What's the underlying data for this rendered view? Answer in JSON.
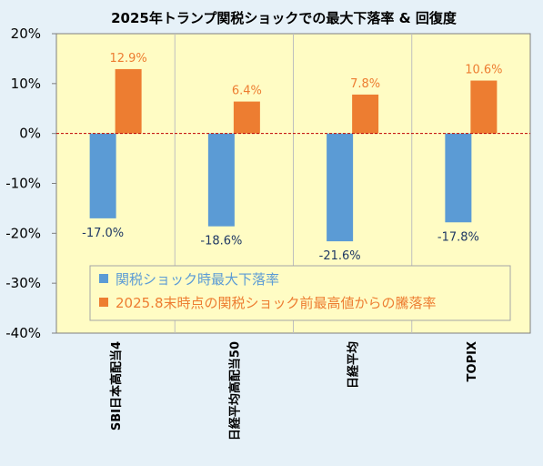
{
  "chart_data": {
    "type": "bar",
    "title": "2025年トランプ関税ショックでの最大下落率 & 回復度",
    "categories": [
      "SBI日本高配当4",
      "日経平均高配当50",
      "日経平均",
      "TOPIX"
    ],
    "series": [
      {
        "name": "関税ショック時最大下落率",
        "values": [
          -17.0,
          -18.6,
          -21.6,
          -17.8
        ],
        "labels": [
          "-17.0%",
          "-18.6%",
          "-21.6%",
          "-17.8%"
        ],
        "color": "#5b9bd5",
        "label_color": "#1f3864"
      },
      {
        "name": "2025.8末時点の関税ショック前最高値からの騰落率",
        "values": [
          12.9,
          6.4,
          7.8,
          10.6
        ],
        "labels": [
          "12.9%",
          "6.4%",
          "7.8%",
          "10.6%"
        ],
        "color": "#ed7d31",
        "label_color": "#ed7d31"
      }
    ],
    "ylim": [
      -40,
      20
    ],
    "yticks": [
      20,
      10,
      0,
      -10,
      -20,
      -30,
      -40
    ],
    "ytick_labels": [
      "20%",
      "10%",
      "0%",
      "-10%",
      "-20%",
      "-30%",
      "-40%"
    ],
    "grid": "vertical separators between categories",
    "zero_line_color": "#c00000",
    "plot_background": "#fffcc4",
    "legend_position": "inside bottom",
    "xlabel": "",
    "ylabel": ""
  }
}
